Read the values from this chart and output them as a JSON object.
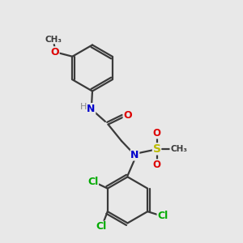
{
  "background_color": "#e8e8e8",
  "atom_colors": {
    "C": "#3a3a3a",
    "N": "#0000cc",
    "O": "#dd0000",
    "S": "#bbbb00",
    "Cl": "#00aa00",
    "H": "#888888"
  },
  "bond_color": "#3a3a3a",
  "line_width": 1.6,
  "font_size": 9,
  "figsize": [
    3.0,
    3.0
  ],
  "dpi": 100
}
